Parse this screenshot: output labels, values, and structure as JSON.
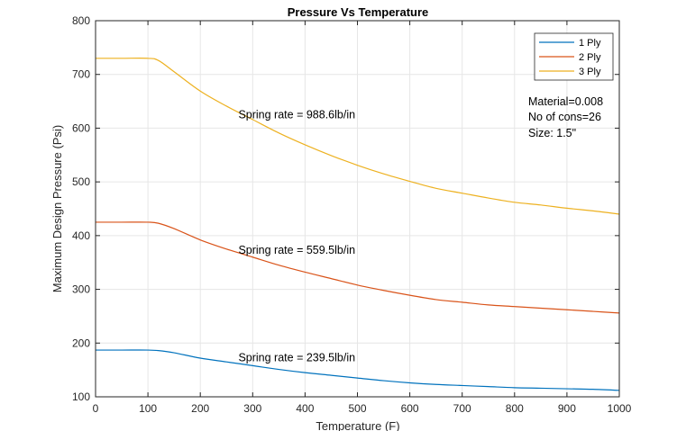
{
  "chart_data": {
    "type": "line",
    "title": "Pressure Vs Temperature",
    "xlabel": "Temperature (F)",
    "ylabel": "Maximum Design Pressure (Psi)",
    "xlim": [
      0,
      1000
    ],
    "ylim": [
      100,
      800
    ],
    "xticks": [
      0,
      100,
      200,
      300,
      400,
      500,
      600,
      700,
      800,
      900,
      1000
    ],
    "yticks": [
      100,
      200,
      300,
      400,
      500,
      600,
      700,
      800
    ],
    "grid": true,
    "legend_position": "top-right",
    "series": [
      {
        "name": "1 Ply",
        "color": "#0072BD",
        "x": [
          0,
          50,
          100,
          120,
          150,
          200,
          250,
          300,
          350,
          400,
          450,
          500,
          550,
          600,
          650,
          700,
          750,
          800,
          850,
          900,
          950,
          1000
        ],
        "y": [
          187,
          187,
          187,
          186,
          182,
          172,
          165,
          158,
          151,
          145,
          140,
          135,
          130,
          126,
          123,
          121,
          119,
          117,
          116,
          115,
          114,
          112
        ]
      },
      {
        "name": "2 Ply",
        "color": "#D95319",
        "x": [
          0,
          50,
          100,
          120,
          150,
          200,
          250,
          300,
          350,
          400,
          450,
          500,
          550,
          600,
          650,
          700,
          750,
          800,
          850,
          900,
          950,
          1000
        ],
        "y": [
          425,
          425,
          425,
          423,
          413,
          392,
          375,
          360,
          345,
          332,
          320,
          308,
          298,
          289,
          281,
          276,
          271,
          268,
          265,
          262,
          259,
          256
        ]
      },
      {
        "name": "3 Ply",
        "color": "#EDB120",
        "x": [
          0,
          50,
          100,
          120,
          150,
          200,
          250,
          300,
          350,
          400,
          450,
          500,
          550,
          600,
          650,
          700,
          750,
          800,
          850,
          900,
          950,
          1000
        ],
        "y": [
          730,
          730,
          730,
          726,
          705,
          669,
          641,
          616,
          591,
          569,
          549,
          531,
          515,
          501,
          488,
          479,
          470,
          462,
          457,
          451,
          446,
          440
        ]
      }
    ],
    "annotations": [
      {
        "text": "Spring rate = 988.6lb/in",
        "x": 302,
        "y": 625
      },
      {
        "text": "Spring rate = 559.5lb/in",
        "x": 302,
        "y": 373
      },
      {
        "text": "Spring rate = 239.5lb/in",
        "x": 302,
        "y": 173
      }
    ],
    "info_box": [
      "Material=0.008",
      "No of cons=26",
      "Size: 1.5\""
    ]
  }
}
